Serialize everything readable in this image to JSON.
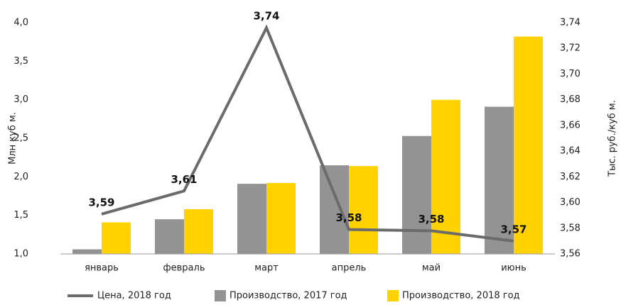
{
  "chart_data": {
    "type": "bar",
    "categories": [
      "январь",
      "февраль",
      "март",
      "апрель",
      "май",
      "июнь"
    ],
    "series": [
      {
        "name": "Цена, 2018 год",
        "type": "line",
        "axis": "y2",
        "color": "#6b6b6b",
        "values": [
          3.591,
          3.609,
          3.736,
          3.579,
          3.578,
          3.57
        ],
        "value_labels": [
          "3,59",
          "3,61",
          "3,74",
          "3,58",
          "3,58",
          "3,57"
        ]
      },
      {
        "name": "Производство, 2017 год",
        "color": "#939393",
        "values": [
          1.06,
          1.45,
          1.91,
          2.15,
          2.53,
          2.91
        ]
      },
      {
        "name": "Производство, 2018 год",
        "color": "#ffd200",
        "values": [
          1.41,
          1.58,
          1.92,
          2.14,
          3.0,
          3.82
        ]
      }
    ],
    "ylabel": "Млн куб м.",
    "y2label": "Тыс. руб./куб м.",
    "ylim": [
      1.0,
      4.0
    ],
    "yticks": [
      {
        "value": 1.0,
        "label": "1,0"
      },
      {
        "value": 1.5,
        "label": "1,5"
      },
      {
        "value": 2.0,
        "label": "2,0"
      },
      {
        "value": 2.5,
        "label": "2,5"
      },
      {
        "value": 3.0,
        "label": "3,0"
      },
      {
        "value": 3.5,
        "label": "3,5"
      },
      {
        "value": 4.0,
        "label": "4,0"
      }
    ],
    "y2lim": [
      3.56,
      3.74
    ],
    "y2ticks": [
      {
        "value": 3.56,
        "label": "3,56"
      },
      {
        "value": 3.58,
        "label": "3,58"
      },
      {
        "value": 3.6,
        "label": "3,60"
      },
      {
        "value": 3.62,
        "label": "3,62"
      },
      {
        "value": 3.64,
        "label": "3,64"
      },
      {
        "value": 3.66,
        "label": "3,66"
      },
      {
        "value": 3.68,
        "label": "3,68"
      },
      {
        "value": 3.7,
        "label": "3,70"
      },
      {
        "value": 3.72,
        "label": "3,72"
      },
      {
        "value": 3.74,
        "label": "3,74"
      }
    ],
    "grid": false
  }
}
